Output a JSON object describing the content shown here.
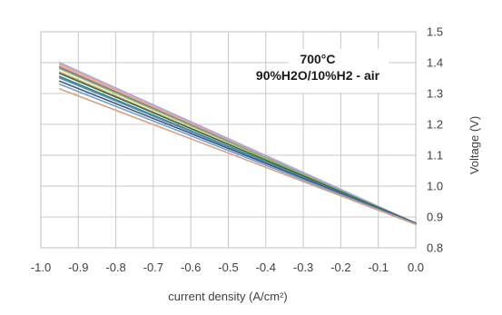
{
  "chart_data": {
    "type": "line",
    "title": "",
    "annotation": [
      "700°C",
      "90%H2O/10%H2 - air"
    ],
    "xlabel": "current density (A/cm²)",
    "ylabel": "Voltage (V)",
    "xlim": [
      -1.0,
      0.0
    ],
    "ylim": [
      0.8,
      1.5
    ],
    "x_ticks": [
      "-1.0",
      "-0.9",
      "-0.8",
      "-0.7",
      "-0.6",
      "-0.5",
      "-0.4",
      "-0.3",
      "-0.2",
      "-0.1",
      "0.0"
    ],
    "y_ticks": [
      "1.5",
      "1.4",
      "1.3",
      "1.2",
      "1.1",
      "1.0",
      "0.9",
      "0.8"
    ],
    "y_axis_side": "right",
    "grid": true,
    "legend": "none",
    "series": [
      {
        "color": "#e8a6a6",
        "x": [
          -0.95,
          0.0
        ],
        "y": [
          1.395,
          0.878
        ]
      },
      {
        "color": "#a9a6e0",
        "x": [
          -0.95,
          0.0
        ],
        "y": [
          1.4,
          0.88
        ]
      },
      {
        "color": "#f2b36b",
        "x": [
          -0.95,
          0.0
        ],
        "y": [
          1.39,
          0.876
        ]
      },
      {
        "color": "#7a6fb0",
        "x": [
          -0.95,
          0.0
        ],
        "y": [
          1.385,
          0.878
        ]
      },
      {
        "color": "#8fbf6a",
        "x": [
          -0.95,
          0.0
        ],
        "y": [
          1.38,
          0.879
        ]
      },
      {
        "color": "#d4a25c",
        "x": [
          -0.95,
          0.0
        ],
        "y": [
          1.37,
          0.877
        ]
      },
      {
        "color": "#3f6f3f",
        "x": [
          -0.95,
          0.0
        ],
        "y": [
          1.365,
          0.88
        ]
      },
      {
        "color": "#2a7f7a",
        "x": [
          -0.95,
          0.0
        ],
        "y": [
          1.355,
          0.878
        ]
      },
      {
        "color": "#5c8fc0",
        "x": [
          -0.95,
          0.0
        ],
        "y": [
          1.35,
          0.879
        ]
      },
      {
        "color": "#405a80",
        "x": [
          -0.95,
          0.0
        ],
        "y": [
          1.34,
          0.88
        ]
      },
      {
        "color": "#6fa0d0",
        "x": [
          -0.95,
          0.0
        ],
        "y": [
          1.33,
          0.877
        ]
      },
      {
        "color": "#d8a080",
        "x": [
          -0.95,
          0.0
        ],
        "y": [
          1.315,
          0.876
        ]
      }
    ]
  }
}
